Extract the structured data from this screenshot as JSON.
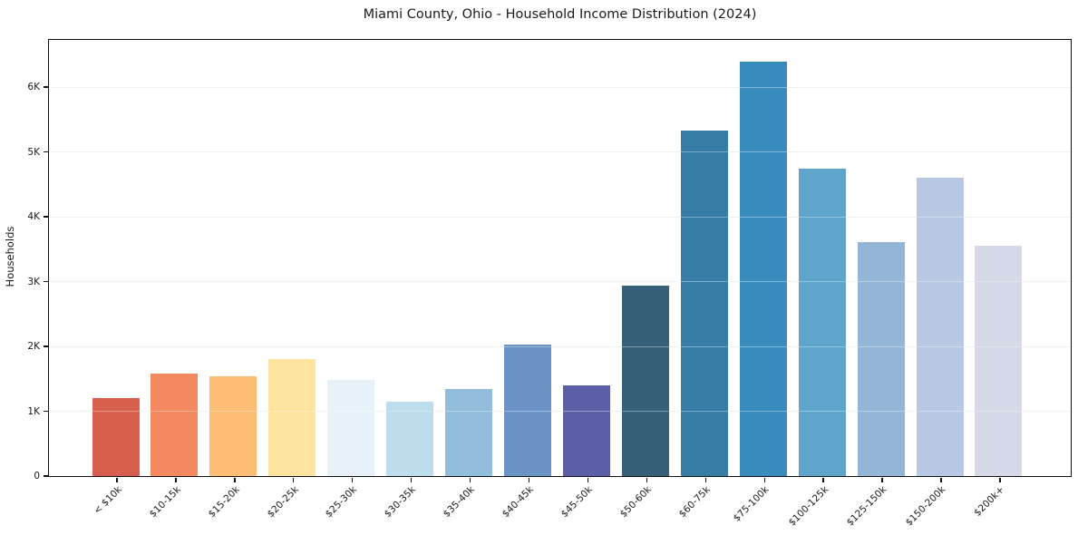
{
  "chart_data": {
    "type": "bar",
    "title": "Miami County, Ohio - Household Income Distribution (2024)",
    "xlabel": "",
    "ylabel": "Households",
    "categories": [
      "< $10k",
      "$10-15k",
      "$15-20k",
      "$20-25k",
      "$25-30k",
      "$30-35k",
      "$35-40k",
      "$40-45k",
      "$45-50k",
      "$50-60k",
      "$60-75k",
      "$75-100k",
      "$100-125k",
      "$125-150k",
      "$150-200k",
      "$200k+"
    ],
    "values": [
      1210,
      1580,
      1540,
      1800,
      1480,
      1150,
      1340,
      2030,
      1400,
      2940,
      5330,
      6400,
      4750,
      3610,
      4610,
      3560
    ],
    "colors": [
      "#d6604d",
      "#f4885f",
      "#fdbd74",
      "#fee49f",
      "#e6f2f7",
      "#bcdeec",
      "#92bedb",
      "#6b93c5",
      "#5d5ea8",
      "#36607a",
      "#377da6",
      "#398bbe",
      "#5fa5cb",
      "#93b6d7",
      "#b9c8e2",
      "#d6d9e7"
    ],
    "ylim": [
      0,
      6730
    ],
    "yticks": [
      0,
      1000,
      2000,
      3000,
      4000,
      5000,
      6000
    ],
    "ytick_labels": [
      "0",
      "1K",
      "2K",
      "3K",
      "4K",
      "5K",
      "6K"
    ],
    "grid": "horizontal",
    "legend": "none"
  }
}
